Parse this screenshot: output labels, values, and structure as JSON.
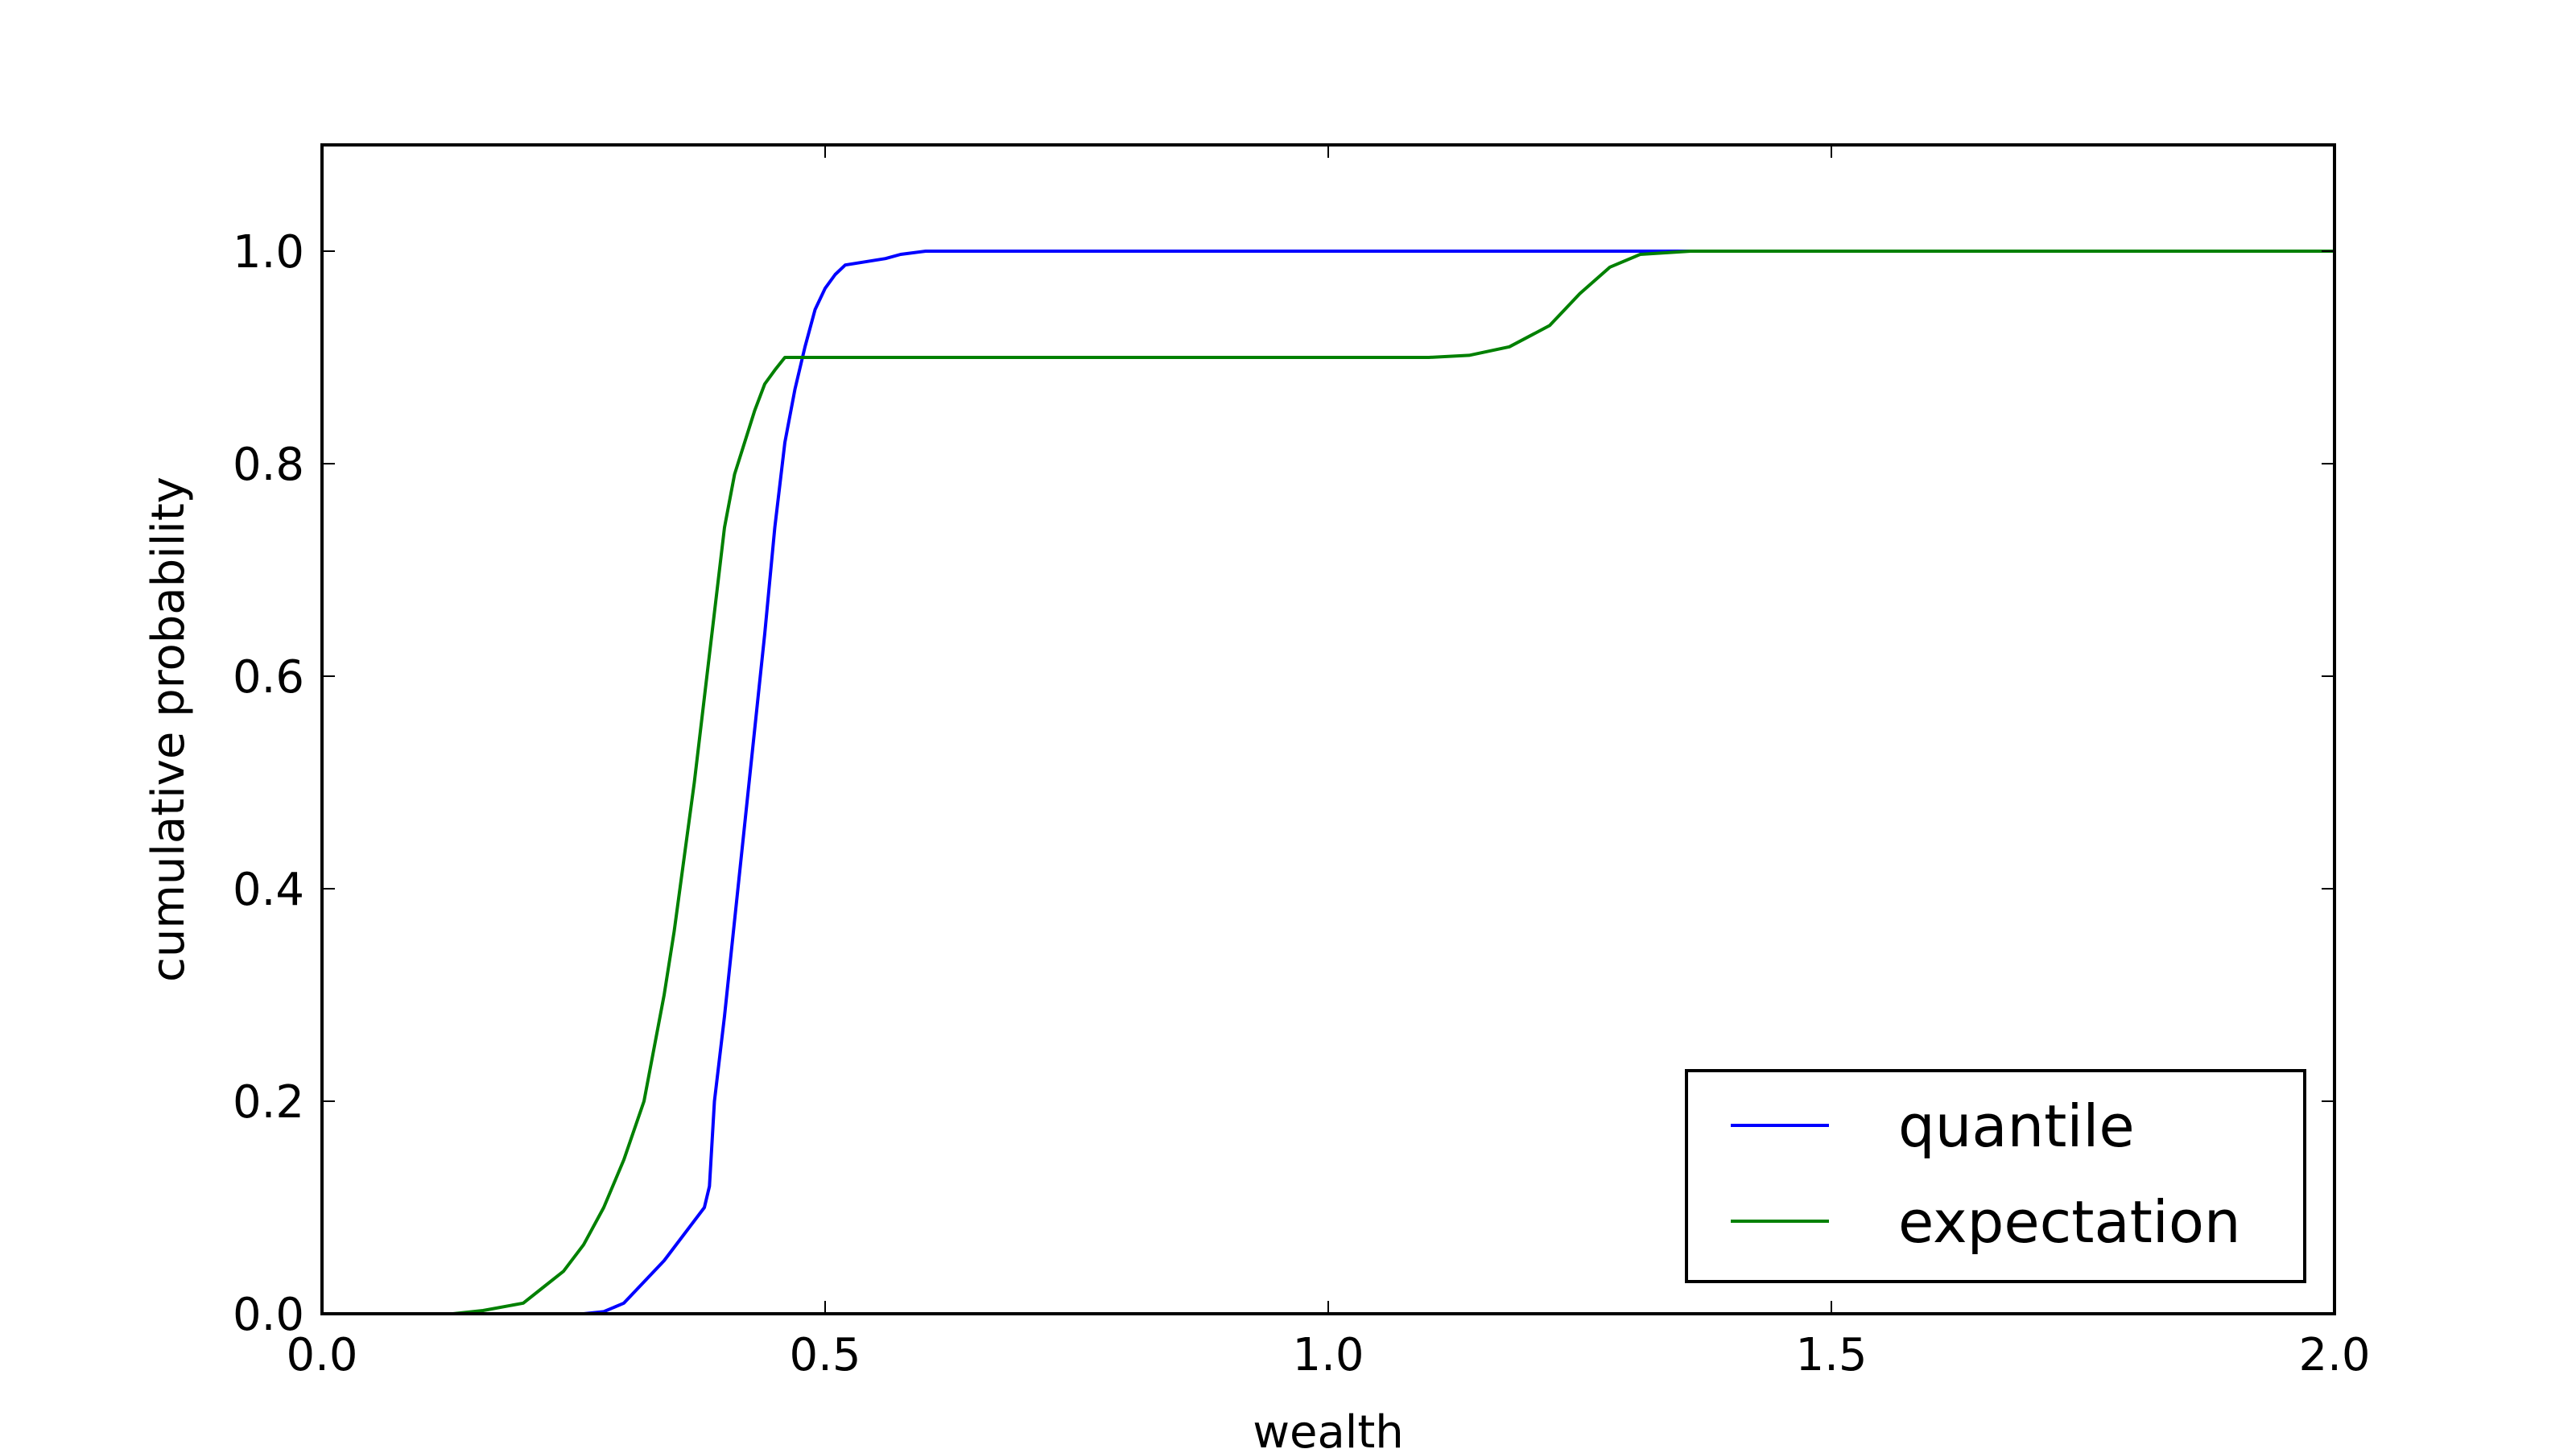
{
  "chart_data": {
    "type": "line",
    "title": "",
    "xlabel": "wealth",
    "ylabel": "cumulative probability",
    "xlim": [
      0.0,
      2.0
    ],
    "ylim": [
      0.0,
      1.1
    ],
    "xticks": [
      0.0,
      0.5,
      1.0,
      1.5,
      2.0
    ],
    "xtick_labels": [
      "0.0",
      "0.5",
      "1.0",
      "1.5",
      "2.0"
    ],
    "yticks": [
      0.0,
      0.2,
      0.4,
      0.6,
      0.8,
      1.0
    ],
    "ytick_labels": [
      "0.0",
      "0.2",
      "0.4",
      "0.6",
      "0.8",
      "1.0"
    ],
    "grid": false,
    "legend_position": "lower-right",
    "series": [
      {
        "name": "quantile",
        "color": "#0000ff",
        "points": [
          [
            0.0,
            0.0
          ],
          [
            0.26,
            0.0
          ],
          [
            0.28,
            0.002
          ],
          [
            0.3,
            0.01
          ],
          [
            0.32,
            0.03
          ],
          [
            0.34,
            0.05
          ],
          [
            0.36,
            0.075
          ],
          [
            0.38,
            0.1
          ],
          [
            0.385,
            0.12
          ],
          [
            0.39,
            0.2
          ],
          [
            0.4,
            0.28
          ],
          [
            0.41,
            0.37
          ],
          [
            0.42,
            0.46
          ],
          [
            0.43,
            0.55
          ],
          [
            0.44,
            0.64
          ],
          [
            0.45,
            0.74
          ],
          [
            0.46,
            0.82
          ],
          [
            0.47,
            0.87
          ],
          [
            0.48,
            0.91
          ],
          [
            0.49,
            0.945
          ],
          [
            0.5,
            0.965
          ],
          [
            0.51,
            0.978
          ],
          [
            0.52,
            0.987
          ],
          [
            0.54,
            0.99
          ],
          [
            0.56,
            0.993
          ],
          [
            0.575,
            0.997
          ],
          [
            0.6,
            1.0
          ],
          [
            2.0,
            1.0
          ]
        ]
      },
      {
        "name": "expectation",
        "color": "#008000",
        "points": [
          [
            0.0,
            0.0
          ],
          [
            0.13,
            0.0
          ],
          [
            0.16,
            0.003
          ],
          [
            0.2,
            0.01
          ],
          [
            0.22,
            0.025
          ],
          [
            0.24,
            0.04
          ],
          [
            0.26,
            0.065
          ],
          [
            0.28,
            0.1
          ],
          [
            0.3,
            0.145
          ],
          [
            0.32,
            0.2
          ],
          [
            0.33,
            0.25
          ],
          [
            0.34,
            0.3
          ],
          [
            0.35,
            0.36
          ],
          [
            0.36,
            0.43
          ],
          [
            0.37,
            0.5
          ],
          [
            0.38,
            0.58
          ],
          [
            0.39,
            0.66
          ],
          [
            0.4,
            0.74
          ],
          [
            0.41,
            0.79
          ],
          [
            0.42,
            0.82
          ],
          [
            0.43,
            0.85
          ],
          [
            0.44,
            0.875
          ],
          [
            0.45,
            0.888
          ],
          [
            0.46,
            0.9
          ],
          [
            1.1,
            0.9
          ],
          [
            1.14,
            0.902
          ],
          [
            1.18,
            0.91
          ],
          [
            1.22,
            0.93
          ],
          [
            1.25,
            0.96
          ],
          [
            1.28,
            0.985
          ],
          [
            1.31,
            0.997
          ],
          [
            1.36,
            1.0
          ],
          [
            2.0,
            1.0
          ]
        ]
      }
    ]
  }
}
